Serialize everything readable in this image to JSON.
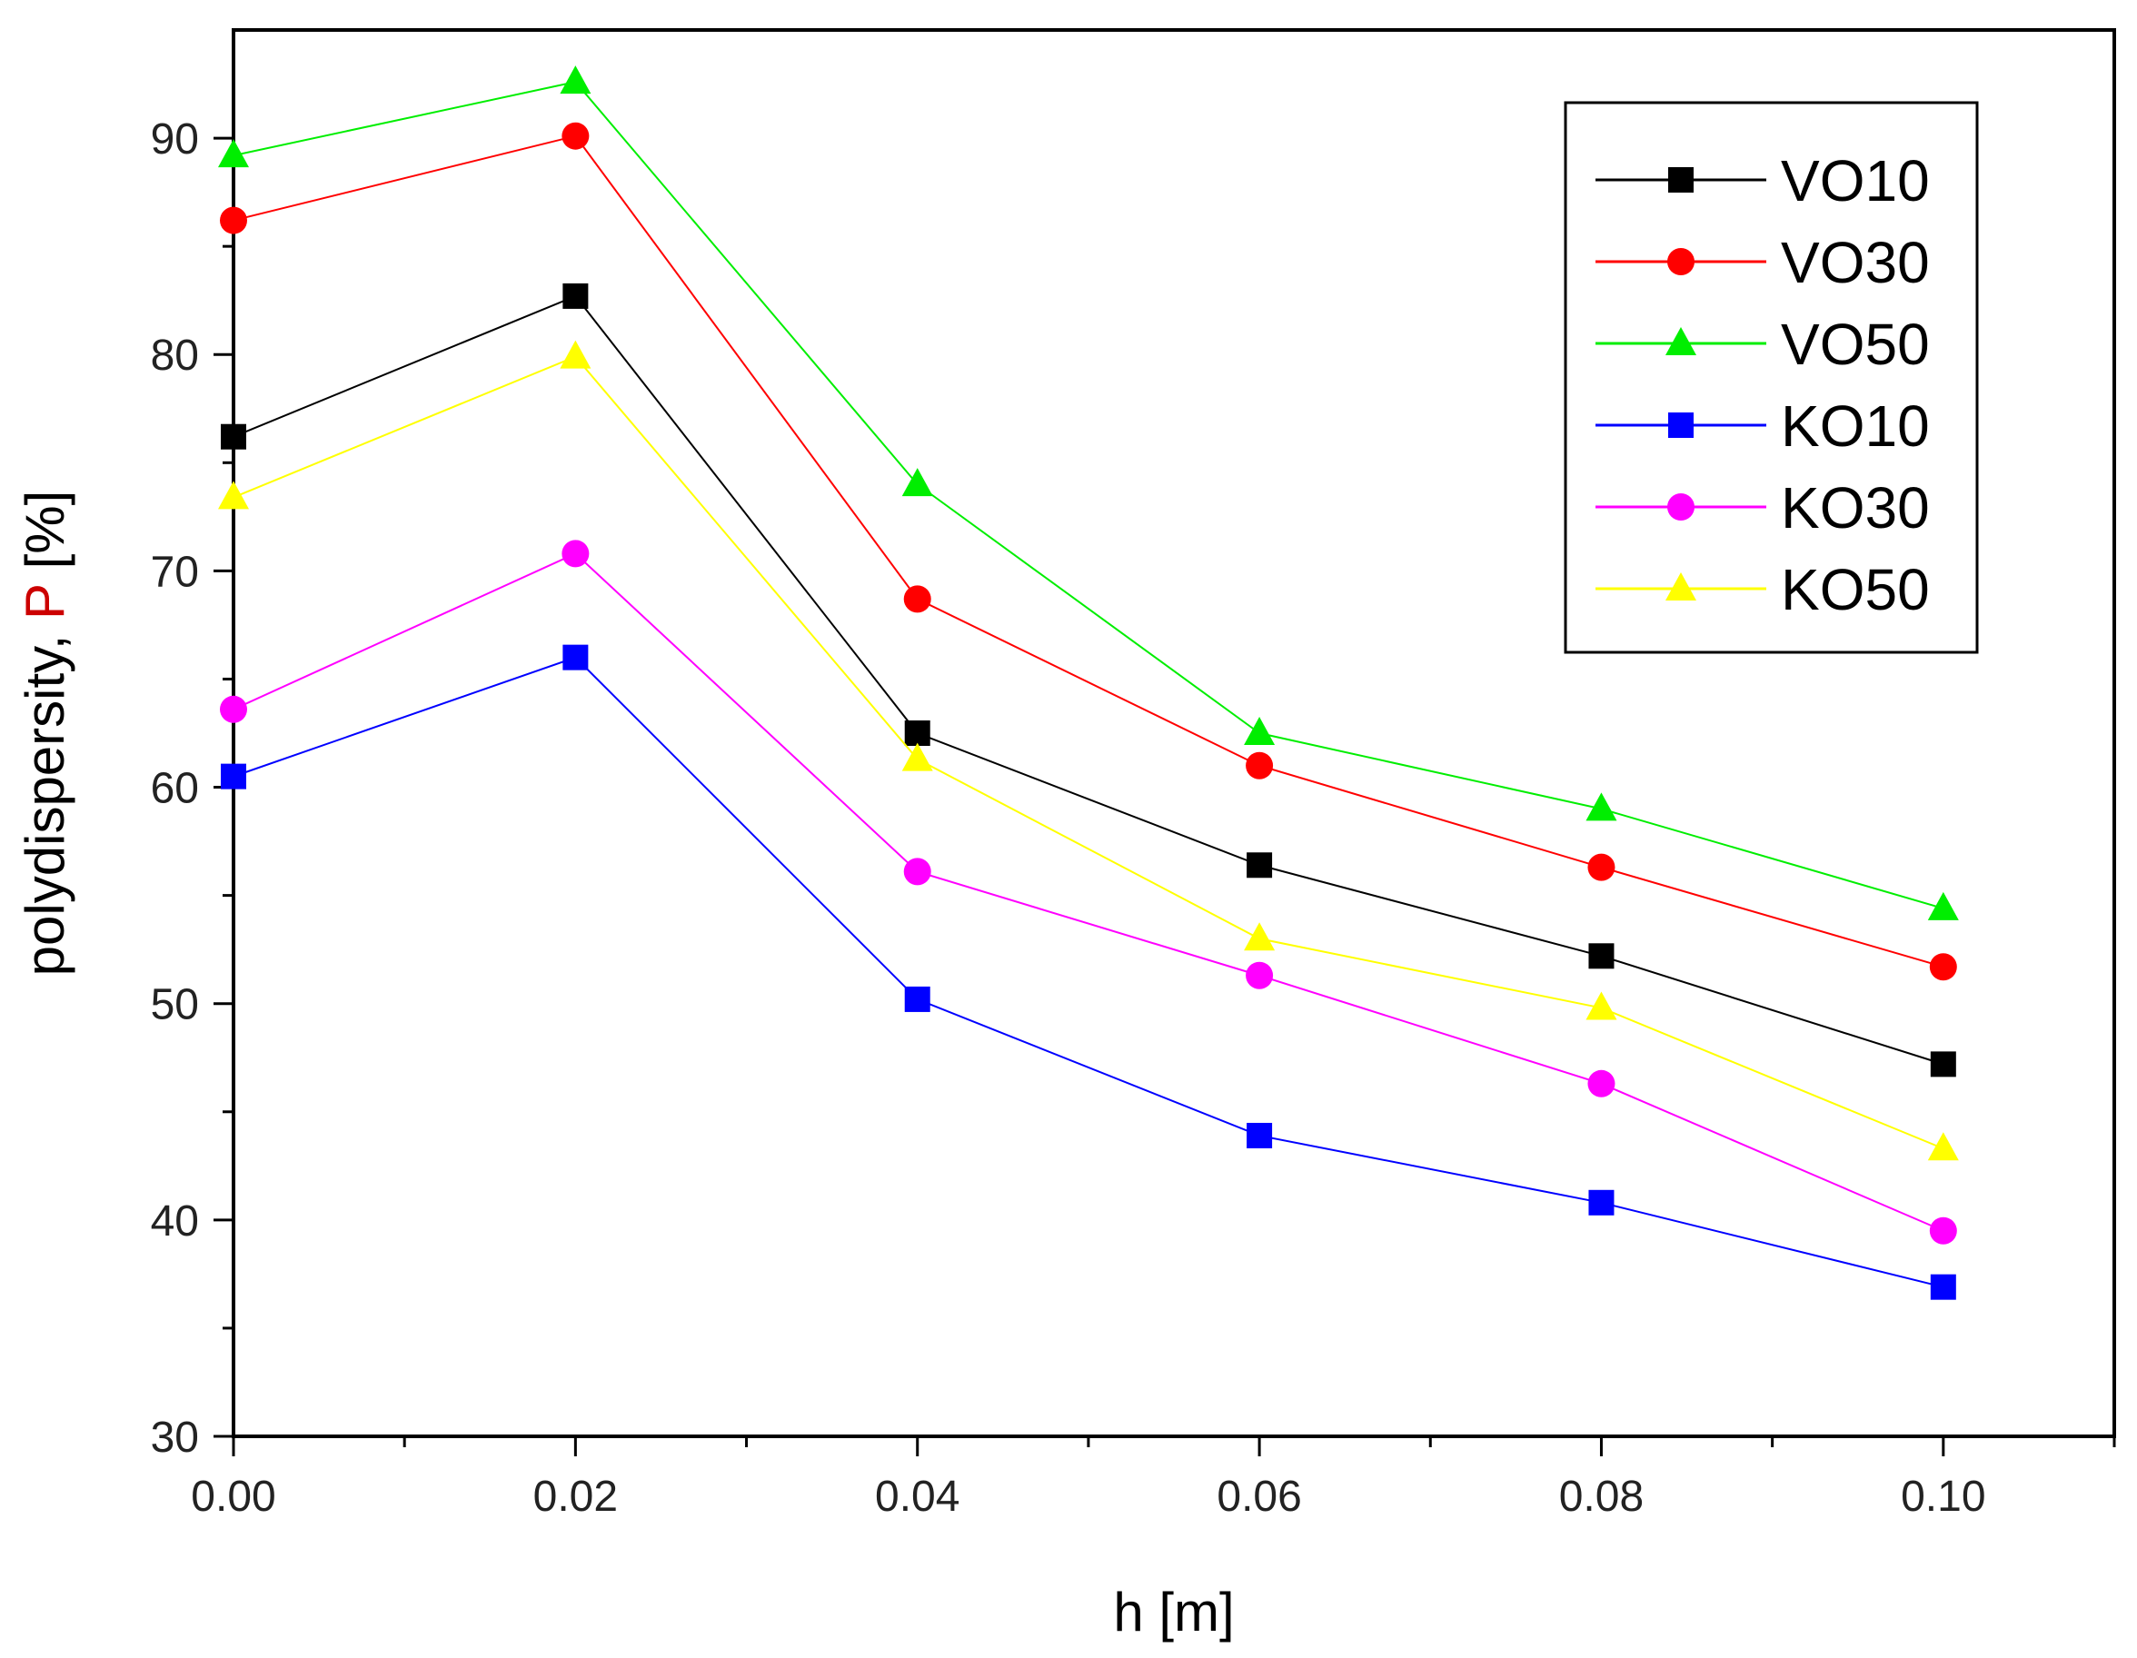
{
  "chart_data": {
    "type": "line",
    "title": "",
    "xlabel": "h [m]",
    "ylabel_prefix": "polydispersity, ",
    "ylabel_symbol": "P",
    "ylabel_unit": " [%]",
    "ylabel_symbol_color": "#cc0000",
    "xlim": [
      0.0,
      0.11
    ],
    "ylim": [
      30,
      95
    ],
    "x_ticks": [
      "0.00",
      "0.02",
      "0.04",
      "0.06",
      "0.08",
      "0.10"
    ],
    "x_tick_values": [
      0.0,
      0.02,
      0.04,
      0.06,
      0.08,
      0.1
    ],
    "x_minor_ticks": [
      0.01,
      0.03,
      0.05,
      0.07,
      0.09,
      0.11
    ],
    "y_ticks": [
      "30",
      "40",
      "50",
      "60",
      "70",
      "80",
      "90"
    ],
    "y_tick_values": [
      30,
      40,
      50,
      60,
      70,
      80,
      90
    ],
    "y_minor_ticks": [
      35,
      45,
      55,
      65,
      75,
      85
    ],
    "grid": false,
    "legend_position": "top-right",
    "x": [
      0.0,
      0.02,
      0.04,
      0.06,
      0.08,
      0.1
    ],
    "series": [
      {
        "name": "VO10",
        "color": "#000000",
        "marker": "square",
        "values": [
          76.2,
          82.7,
          62.5,
          56.4,
          52.2,
          47.2
        ]
      },
      {
        "name": "VO30",
        "color": "#ff0000",
        "marker": "circle",
        "values": [
          86.2,
          90.1,
          68.7,
          61.0,
          56.3,
          51.7
        ]
      },
      {
        "name": "VO50",
        "color": "#00ee00",
        "marker": "triangle",
        "values": [
          89.2,
          92.6,
          74.0,
          62.5,
          59.0,
          54.4
        ]
      },
      {
        "name": "KO10",
        "color": "#0000ff",
        "marker": "square",
        "values": [
          60.5,
          66.0,
          50.2,
          43.9,
          40.8,
          36.9
        ]
      },
      {
        "name": "KO30",
        "color": "#ff00ff",
        "marker": "circle",
        "values": [
          63.6,
          70.8,
          56.1,
          51.3,
          46.3,
          39.5
        ]
      },
      {
        "name": "KO50",
        "color": "#ffff00",
        "marker": "triangle",
        "values": [
          73.4,
          79.9,
          61.3,
          53.0,
          49.8,
          43.3
        ]
      }
    ]
  }
}
